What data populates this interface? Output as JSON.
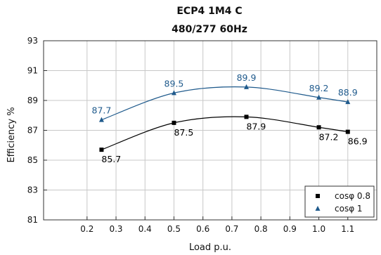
{
  "chart_data": {
    "type": "line",
    "title": "ECP4 1M4 C",
    "subtitle": "480/277 60Hz",
    "xlabel": "Load p.u.",
    "ylabel": "Efficiency %",
    "xlim": [
      0.05,
      1.2
    ],
    "ylim": [
      81,
      93
    ],
    "xticks": [
      "0.2",
      "0.3",
      "0.4",
      "0.5",
      "0.6",
      "0.7",
      "0.8",
      "0.9",
      "1.0",
      "1.1"
    ],
    "yticks": [
      "81",
      "83",
      "85",
      "87",
      "89",
      "91",
      "93"
    ],
    "grid": true,
    "legend_position": "bottom-right",
    "series": [
      {
        "name": "cosφ 0.8",
        "color": "#000000",
        "marker": "square",
        "x": [
          0.25,
          0.5,
          0.75,
          1.0,
          1.1
        ],
        "values": [
          85.7,
          87.5,
          87.9,
          87.2,
          86.9
        ],
        "labels": [
          "85.7",
          "87.5",
          "87.9",
          "87.2",
          "86.9"
        ]
      },
      {
        "name": "cosφ 1",
        "color": "#1f5a8c",
        "marker": "triangle",
        "x": [
          0.25,
          0.5,
          0.75,
          1.0,
          1.1
        ],
        "values": [
          87.7,
          89.5,
          89.9,
          89.2,
          88.9
        ],
        "labels": [
          "87.7",
          "89.5",
          "89.9",
          "89.2",
          "88.9"
        ]
      }
    ]
  }
}
